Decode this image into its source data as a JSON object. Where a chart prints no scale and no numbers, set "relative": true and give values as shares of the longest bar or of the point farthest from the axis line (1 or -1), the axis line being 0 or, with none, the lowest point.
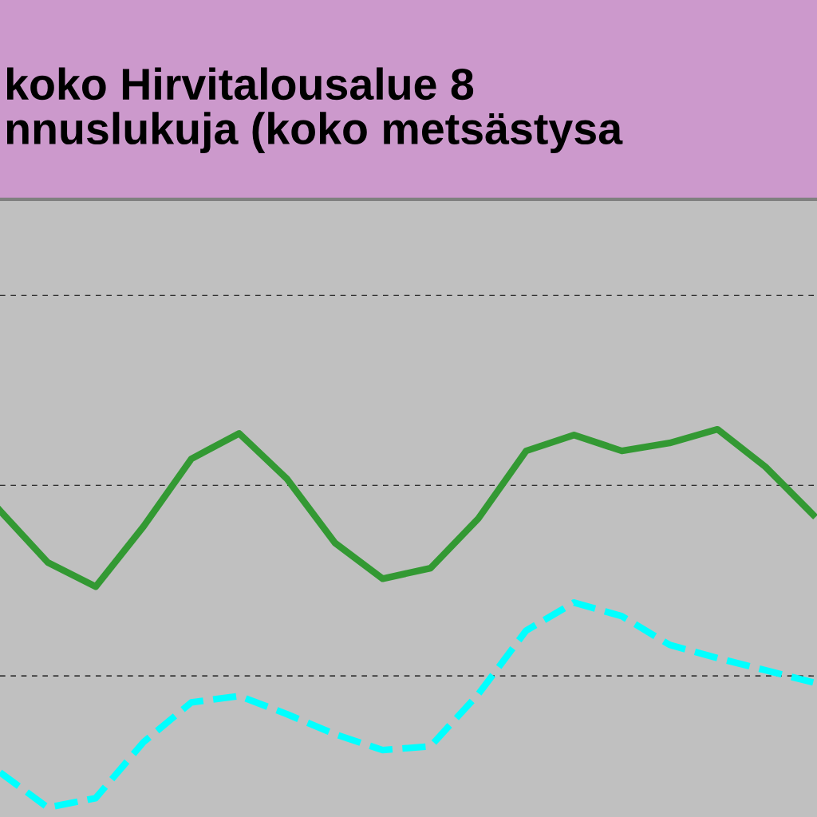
{
  "chart_data": {
    "type": "line",
    "title": "koko Hirvitalousalue 8\nnnuslukuja (koko metsästysa",
    "relative": true,
    "ref_lines": [
      {
        "axis": "y",
        "value": 0.348,
        "color": "#000000",
        "line_style": "dashed"
      },
      {
        "axis": "y",
        "value": 0.852,
        "color": "#000000",
        "line_style": "dashed"
      },
      {
        "axis": "y",
        "value": 1.354,
        "color": "#000000",
        "line_style": "dashed"
      }
    ],
    "categories": [
      null,
      null,
      null,
      null,
      null,
      null,
      null,
      null,
      null,
      null,
      null,
      null,
      null,
      null,
      null,
      null,
      null,
      null
    ],
    "series": [
      {
        "color": "#339933",
        "line_style": "solid",
        "values": [
          0.785,
          0.648,
          0.584,
          0.743,
          0.922,
          0.989,
          0.869,
          0.7,
          0.605,
          0.633,
          0.764,
          0.943,
          0.985,
          0.943,
          0.964,
          1.0,
          0.901,
          0.774
        ]
      },
      {
        "color": "#00ffff",
        "line_style": "dashed",
        "values": [
          0.093,
          0.0,
          0.025,
          0.173,
          0.278,
          0.295,
          0.247,
          0.194,
          0.152,
          0.162,
          0.3,
          0.468,
          0.542,
          0.506,
          0.43,
          0.395,
          0.363,
          0.331
        ]
      }
    ]
  }
}
